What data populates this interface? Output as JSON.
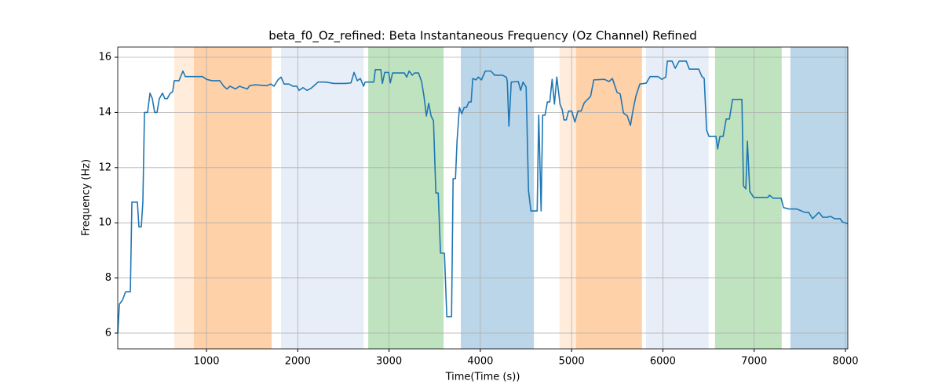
{
  "chart_data": {
    "type": "line",
    "title": "beta_f0_Oz_refined: Beta Instantaneous Frequency (Oz Channel) Refined",
    "xlabel": "Time(Time (s))",
    "ylabel": "Frequency (Hz)",
    "xlim": [
      28,
      8026
    ],
    "ylim": [
      5.43,
      16.37
    ],
    "xticks": [
      1000,
      2000,
      3000,
      4000,
      5000,
      6000,
      7000,
      8000
    ],
    "yticks": [
      6,
      8,
      10,
      12,
      14,
      16
    ],
    "grid": true,
    "regions": [
      {
        "start": 647,
        "end": 1714,
        "color": "#ff7f0e",
        "alpha": 0.15
      },
      {
        "start": 862,
        "end": 1714,
        "color": "#ff7f0e",
        "alpha": 0.25
      },
      {
        "start": 1817,
        "end": 2722,
        "color": "#aec7e8",
        "alpha": 0.3
      },
      {
        "start": 2772,
        "end": 3598,
        "color": "#2ca02c",
        "alpha": 0.3
      },
      {
        "start": 3787,
        "end": 4587,
        "color": "#1f77b4",
        "alpha": 0.3
      },
      {
        "start": 4868,
        "end": 5771,
        "color": "#ff7f0e",
        "alpha": 0.15
      },
      {
        "start": 5049,
        "end": 5771,
        "color": "#ff7f0e",
        "alpha": 0.25
      },
      {
        "start": 5814,
        "end": 6502,
        "color": "#aec7e8",
        "alpha": 0.3
      },
      {
        "start": 6571,
        "end": 7302,
        "color": "#2ca02c",
        "alpha": 0.3
      },
      {
        "start": 7397,
        "end": 8026,
        "color": "#1f77b4",
        "alpha": 0.3
      }
    ],
    "x": [
      28,
      46,
      80,
      114,
      166,
      183,
      243,
      260,
      286,
      303,
      321,
      355,
      381,
      407,
      432,
      458,
      484,
      518,
      544,
      570,
      604,
      630,
      647,
      699,
      742,
      768,
      957,
      1000,
      1060,
      1146,
      1189,
      1224,
      1258,
      1318,
      1361,
      1447,
      1473,
      1533,
      1662,
      1705,
      1740,
      1783,
      1817,
      1851,
      1903,
      1946,
      1989,
      2015,
      2058,
      2101,
      2144,
      2179,
      2222,
      2308,
      2394,
      2523,
      2583,
      2617,
      2652,
      2686,
      2721,
      2738,
      2833,
      2850,
      2910,
      2927,
      2953,
      2996,
      3014,
      3039,
      3168,
      3194,
      3220,
      3254,
      3280,
      3323,
      3357,
      3383,
      3409,
      3435,
      3461,
      3487,
      3513,
      3539,
      3564,
      3607,
      3633,
      3685,
      3702,
      3728,
      3745,
      3771,
      3797,
      3823,
      3849,
      3874,
      3900,
      3917,
      3952,
      3978,
      4012,
      4055,
      4115,
      4158,
      4244,
      4287,
      4296,
      4313,
      4339,
      4416,
      4442,
      4468,
      4502,
      4528,
      4554,
      4623,
      4640,
      4666,
      4683,
      4709,
      4735,
      4761,
      4787,
      4812,
      4838,
      4873,
      4898,
      4916,
      4942,
      4967,
      5002,
      5036,
      5070,
      5105,
      5139,
      5208,
      5243,
      5360,
      5410,
      5447,
      5499,
      5533,
      5568,
      5611,
      5645,
      5671,
      5705,
      5748,
      5817,
      5860,
      5946,
      5989,
      6032,
      6049,
      6101,
      6135,
      6178,
      6256,
      6290,
      6393,
      6428,
      6453,
      6479,
      6505,
      6582,
      6600,
      6625,
      6660,
      6694,
      6729,
      6763,
      6866,
      6883,
      6909,
      6926,
      6952,
      6995,
      7150,
      7167,
      7210,
      7296,
      7322,
      7382,
      7468,
      7554,
      7597,
      7640,
      7709,
      7752,
      7795,
      7838,
      7881,
      7941,
      7967,
      8026
    ],
    "series": [
      {
        "name": "beta_f0_Oz_refined",
        "color": "#1f77b4",
        "values": [
          6.0,
          7.05,
          7.2,
          7.5,
          7.5,
          10.75,
          10.75,
          9.85,
          9.85,
          10.75,
          14.0,
          14.0,
          14.7,
          14.5,
          14.0,
          14.0,
          14.5,
          14.7,
          14.5,
          14.5,
          14.7,
          14.75,
          15.15,
          15.15,
          15.5,
          15.3,
          15.3,
          15.2,
          15.15,
          15.15,
          14.95,
          14.85,
          14.95,
          14.85,
          14.95,
          14.85,
          14.97,
          15.0,
          14.97,
          15.03,
          14.95,
          15.18,
          15.28,
          15.03,
          15.03,
          14.95,
          14.95,
          14.8,
          14.9,
          14.8,
          14.87,
          14.97,
          15.1,
          15.1,
          15.05,
          15.05,
          15.07,
          15.45,
          15.15,
          15.23,
          14.95,
          15.1,
          15.1,
          15.55,
          15.55,
          15.05,
          15.45,
          15.45,
          15.07,
          15.43,
          15.43,
          15.28,
          15.5,
          15.35,
          15.43,
          15.43,
          15.12,
          14.58,
          13.87,
          14.33,
          13.87,
          13.7,
          11.08,
          11.08,
          8.9,
          8.9,
          6.6,
          6.6,
          11.6,
          11.6,
          12.96,
          14.18,
          13.95,
          14.18,
          14.18,
          14.38,
          14.38,
          15.23,
          15.18,
          15.28,
          15.18,
          15.5,
          15.5,
          15.35,
          15.35,
          15.27,
          15.1,
          13.5,
          15.1,
          15.12,
          14.8,
          15.1,
          14.92,
          11.17,
          10.43,
          10.43,
          13.9,
          10.43,
          13.9,
          13.9,
          14.38,
          14.38,
          15.2,
          14.3,
          15.28,
          14.3,
          14.1,
          13.73,
          13.73,
          14.05,
          14.05,
          13.65,
          14.05,
          14.05,
          14.35,
          14.58,
          15.18,
          15.2,
          15.12,
          15.23,
          14.72,
          14.67,
          13.98,
          13.87,
          13.53,
          14.05,
          14.6,
          15.03,
          15.06,
          15.3,
          15.3,
          15.2,
          15.28,
          15.86,
          15.86,
          15.6,
          15.86,
          15.86,
          15.57,
          15.57,
          15.3,
          15.23,
          13.36,
          13.13,
          13.13,
          12.68,
          13.13,
          13.13,
          13.76,
          13.76,
          14.47,
          14.47,
          11.34,
          11.23,
          12.96,
          11.14,
          10.92,
          10.92,
          11.0,
          10.89,
          10.89,
          10.55,
          10.5,
          10.5,
          10.38,
          10.38,
          10.15,
          10.38,
          10.2,
          10.2,
          10.23,
          10.15,
          10.15,
          10.03,
          9.97
        ]
      }
    ]
  }
}
